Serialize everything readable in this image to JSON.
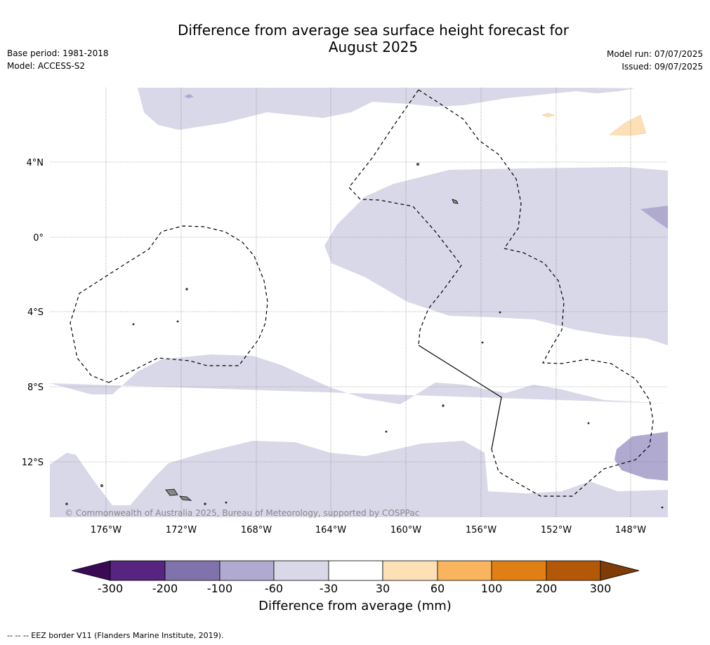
{
  "header": {
    "title_line1": "Difference from average sea surface height forecast for",
    "title_line2": "August 2025",
    "base_period": "Base period: 1981-2018",
    "model": "Model: ACCESS-S2",
    "model_run": "Model run: 07/07/2025",
    "issued": "Issued: 09/07/2025"
  },
  "map": {
    "lat_labels": [
      "4°N",
      "0°",
      "4°S",
      "8°S",
      "12°S"
    ],
    "lon_labels": [
      "176°W",
      "172°W",
      "168°W",
      "164°W",
      "160°W",
      "156°W",
      "152°W",
      "148°W"
    ],
    "copyright": "© Commonwealth of Australia 2025, Bureau of Meteorology, supported by COSPPac",
    "colors": {
      "neg_30_60": "#d8d8e8",
      "neg_100_200": "#b0aad0",
      "pos_30_60": "#fde0b6",
      "land": "#888888"
    }
  },
  "colorbar": {
    "ticks": [
      "-300",
      "-200",
      "-100",
      "-60",
      "-30",
      "30",
      "60",
      "100",
      "200",
      "300"
    ],
    "colors": [
      "#3b0a55",
      "#57247f",
      "#8073ab",
      "#b0aad0",
      "#d8d8e8",
      "#ffffff",
      "#fde0b6",
      "#f8b55d",
      "#e08014",
      "#b35806",
      "#7f3b08"
    ],
    "label": "Difference from average (mm)"
  },
  "footnote": "--  --  -- EEZ border V11 (Flanders Marine Institute, 2019)."
}
